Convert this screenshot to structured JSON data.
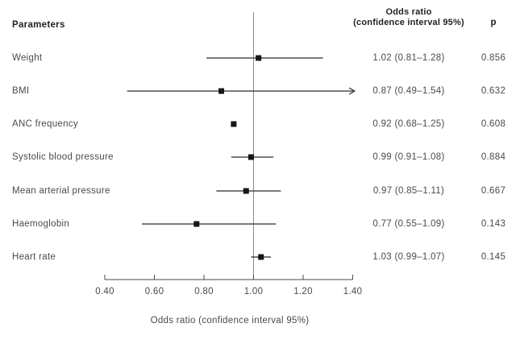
{
  "table": {
    "parameters_header": "Parameters",
    "or_header_line1": "Odds ratio",
    "or_header_line2": "(confidence interval 95%)",
    "p_header": "p"
  },
  "chart_data": {
    "type": "forest",
    "title": "",
    "xlabel": "Odds ratio (confidence interval 95%)",
    "xlim": [
      0.4,
      1.4
    ],
    "reference_line": 1.0,
    "grid": false,
    "x_ticks": [
      {
        "value": 0.4,
        "label": "0.40"
      },
      {
        "value": 0.6,
        "label": "0.60"
      },
      {
        "value": 0.8,
        "label": "0.80"
      },
      {
        "value": 1.0,
        "label": "1.00"
      },
      {
        "value": 1.2,
        "label": "1.20"
      },
      {
        "value": 1.4,
        "label": "1.40"
      }
    ],
    "rows": [
      {
        "label": "Weight",
        "or": 1.02,
        "ci_low": 0.81,
        "ci_high": 1.28,
        "or_text": "1.02 (0.81–1.28)",
        "p": "0.856",
        "ci_line_visible": true,
        "clipped_high": false
      },
      {
        "label": "BMI",
        "or": 0.87,
        "ci_low": 0.49,
        "ci_high": 1.54,
        "or_text": "0.87 (0.49–1.54)",
        "p": "0.632",
        "ci_line_visible": true,
        "clipped_high": true
      },
      {
        "label": "ANC frequency",
        "or": 0.92,
        "ci_low": 0.68,
        "ci_high": 1.25,
        "or_text": "0.92 (0.68–1.25)",
        "p": "0.608",
        "ci_line_visible": false,
        "clipped_high": false
      },
      {
        "label": "Systolic blood pressure",
        "or": 0.99,
        "ci_low": 0.91,
        "ci_high": 1.08,
        "or_text": "0.99 (0.91–1.08)",
        "p": "0.884",
        "ci_line_visible": true,
        "clipped_high": false
      },
      {
        "label": "Mean arterial pressure",
        "or": 0.97,
        "ci_low": 0.85,
        "ci_high": 1.11,
        "or_text": "0.97 (0.85–1.11)",
        "p": "0.667",
        "ci_line_visible": true,
        "clipped_high": false
      },
      {
        "label": "Haemoglobin",
        "or": 0.77,
        "ci_low": 0.55,
        "ci_high": 1.09,
        "or_text": "0.77 (0.55–1.09)",
        "p": "0.143",
        "ci_line_visible": true,
        "clipped_high": false
      },
      {
        "label": "Heart rate",
        "or": 1.03,
        "ci_low": 0.99,
        "ci_high": 1.07,
        "or_text": "1.03 (0.99–1.07)",
        "p": "0.145",
        "ci_line_visible": true,
        "clipped_high": false
      }
    ],
    "colors": {
      "marker": "#161616",
      "ci_line": "#2b2b2b",
      "reference_line": "#8a8a8a",
      "axis": "#4a4a4a",
      "text": "#4a4a4a",
      "header_text": "#1f1f1f",
      "background": "#ffffff"
    }
  }
}
